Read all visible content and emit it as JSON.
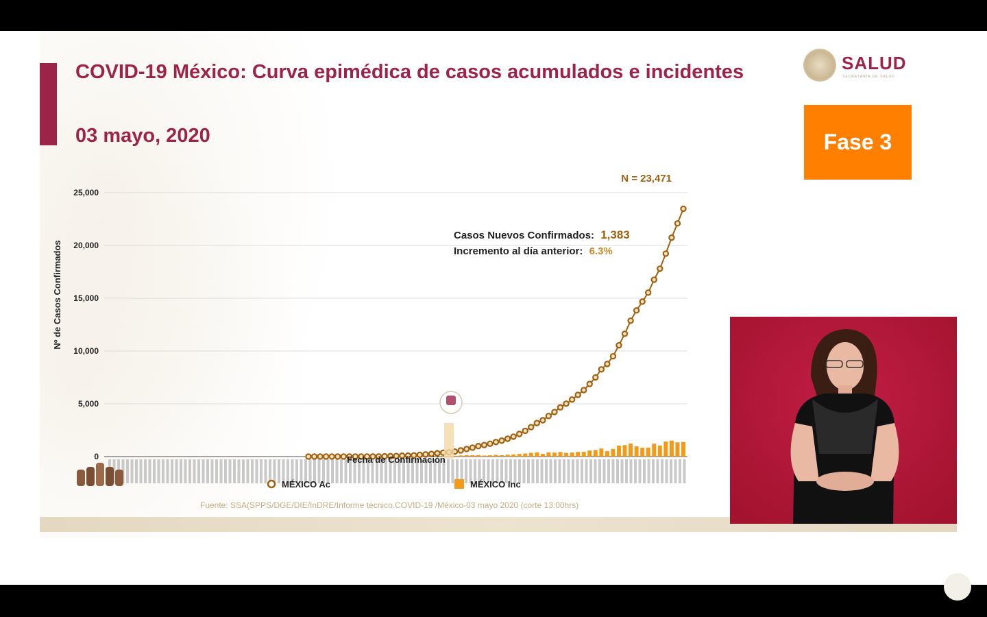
{
  "header": {
    "title": "COVID-19 México: Curva epimédica de casos acumulados e incidentes",
    "date": "03 mayo, 2020"
  },
  "logo": {
    "name": "SALUD",
    "subtitle": "SECRETARÍA DE SALUD"
  },
  "phase_badge": "Fase 3",
  "footer_source": "Fuente: SSA(SPPS/DGE/DIE/InDRE/Informe técnico.COVID-19 /México-03 mayo 2020 (corte 13:00hrs)",
  "colors": {
    "brand": "#9d2449",
    "accent_orange": "#ff7f00",
    "cumulative_line": "#a0600f",
    "incident_bar": "#f49a1a",
    "interpreter_bg": "#b3183b"
  },
  "chart_data": {
    "type": "line",
    "ylabel": "Nº de Casos Confirmados",
    "xlabel": "Fecha de Confirmación",
    "ylim": [
      0,
      25000
    ],
    "yticks": [
      "25,000",
      "20,000",
      "15,000",
      "10,000",
      "5,000",
      "0"
    ],
    "grid": true,
    "legend_position": "bottom",
    "series": [
      {
        "name": "MÉXICO Ac",
        "kind": "line",
        "values": [
          1,
          4,
          5,
          5,
          5,
          5,
          5,
          5,
          7,
          7,
          7,
          11,
          15,
          26,
          41,
          53,
          82,
          93,
          118,
          164,
          203,
          251,
          316,
          367,
          405,
          475,
          585,
          717,
          848,
          993,
          1094,
          1215,
          1378,
          1510,
          1688,
          1890,
          2143,
          2439,
          2785,
          3181,
          3441,
          3844,
          4219,
          4661,
          5014,
          5399,
          5847,
          6297,
          6875,
          7497,
          8261,
          8772,
          9501,
          10544,
          11633,
          12872,
          13842,
          14677,
          15529,
          16752,
          17799,
          19224,
          20739,
          22088,
          23471
        ]
      },
      {
        "name": "MÉXICO Inc",
        "kind": "bar",
        "values": [
          1,
          3,
          1,
          0,
          0,
          0,
          0,
          0,
          2,
          0,
          0,
          4,
          4,
          11,
          15,
          12,
          29,
          11,
          25,
          46,
          39,
          48,
          65,
          51,
          38,
          70,
          110,
          132,
          131,
          145,
          101,
          121,
          163,
          132,
          178,
          202,
          253,
          296,
          346,
          396,
          260,
          403,
          375,
          442,
          353,
          385,
          448,
          450,
          578,
          622,
          764,
          511,
          729,
          1043,
          1089,
          1239,
          970,
          835,
          852,
          1223,
          1047,
          1425,
          1515,
          1349,
          1383
        ]
      }
    ],
    "annotations": {
      "total_label": "N = 23,471",
      "new_cases_label": "Casos Nuevos Confirmados:",
      "new_cases_value": "1,383",
      "increment_label": "Incremento al día anterior:",
      "increment_value": "6.3%"
    }
  }
}
